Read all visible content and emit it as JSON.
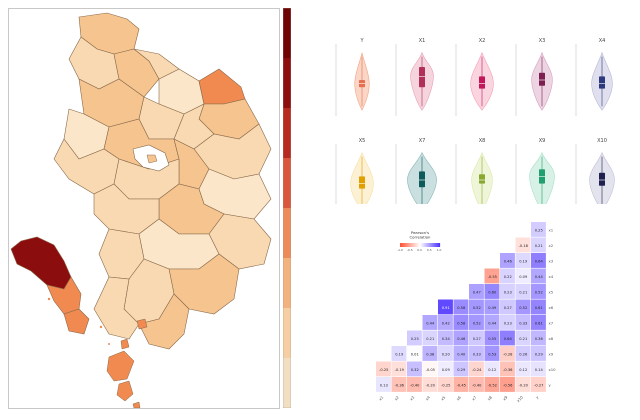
{
  "chart_data": [
    {
      "type": "choropleth",
      "colorbar": {
        "colors": [
          "#f2dfc1",
          "#f6cea3",
          "#f3b17e",
          "#ec8a5a",
          "#d9573a",
          "#b72a20",
          "#8c0d0d",
          "#6e0404"
        ]
      },
      "region_colors": {
        "dark": "#8c0d0d",
        "orange": "#f08a50",
        "light": "#f8d9b2",
        "pale": "#fbe6c9",
        "mid": "#f5c48f",
        "lake": "#ffffff",
        "border": "#8a6a4a"
      }
    },
    {
      "type": "violin",
      "panels": [
        {
          "title": "Y",
          "color": "#f4a582",
          "dark": "#e76f51",
          "center": 0.45,
          "spread": 0.14,
          "q1": 0.4,
          "q3": 0.5
        },
        {
          "title": "X1",
          "color": "#e8a0b4",
          "dark": "#b0305a",
          "center": 0.55,
          "spread": 0.22,
          "q1": 0.4,
          "q3": 0.68
        },
        {
          "title": "X2",
          "color": "#f4a0b8",
          "dark": "#c2185b",
          "center": 0.45,
          "spread": 0.22,
          "q1": 0.38,
          "q3": 0.55
        },
        {
          "title": "X3",
          "color": "#d8a0c0",
          "dark": "#7b2050",
          "center": 0.5,
          "spread": 0.2,
          "q1": 0.42,
          "q3": 0.6
        },
        {
          "title": "X4",
          "color": "#b8b8d8",
          "dark": "#2e3a80",
          "center": 0.45,
          "spread": 0.2,
          "q1": 0.38,
          "q3": 0.55
        },
        {
          "title": "X5",
          "color": "#f8e0a0",
          "dark": "#e0a000",
          "center": 0.45,
          "spread": 0.22,
          "q1": 0.38,
          "q3": 0.55
        },
        {
          "title": "X7",
          "color": "#8ab8b8",
          "dark": "#0f5a5a",
          "center": 0.5,
          "spread": 0.28,
          "q1": 0.4,
          "q3": 0.62
        },
        {
          "title": "X8",
          "color": "#dce8a8",
          "dark": "#8aa830",
          "center": 0.5,
          "spread": 0.2,
          "q1": 0.45,
          "q3": 0.58
        },
        {
          "title": "X9",
          "color": "#a8e0c8",
          "dark": "#20a070",
          "center": 0.55,
          "spread": 0.24,
          "q1": 0.45,
          "q3": 0.65
        },
        {
          "title": "X10",
          "color": "#c0c0d8",
          "dark": "#202050",
          "center": 0.5,
          "spread": 0.24,
          "q1": 0.42,
          "q3": 0.6
        }
      ]
    },
    {
      "type": "heatmap",
      "legend": {
        "title": "Pearson's Correlation",
        "ticks": [
          "-1.0",
          "-0.5",
          "0.0",
          "0.5",
          "1.0"
        ]
      },
      "row_labels": [
        "x1",
        "x2",
        "x3",
        "x4",
        "x5",
        "x6",
        "x7",
        "x8",
        "x9",
        "x10",
        "y"
      ],
      "col_labels": [
        "x1",
        "x2",
        "x3",
        "x4",
        "x5",
        "x6",
        "x7",
        "x8",
        "x9",
        "x10",
        "y"
      ],
      "values": [
        [
          null,
          null,
          null,
          null,
          null,
          null,
          null,
          null,
          null,
          null,
          0.25
        ],
        [
          null,
          null,
          null,
          null,
          null,
          null,
          null,
          null,
          null,
          -0.18,
          0.21
        ],
        [
          null,
          null,
          null,
          null,
          null,
          null,
          null,
          null,
          0.46,
          0.19,
          0.64
        ],
        [
          null,
          null,
          null,
          null,
          null,
          null,
          null,
          -0.55,
          0.22,
          0.09,
          0.44
        ],
        [
          null,
          null,
          null,
          null,
          null,
          null,
          0.47,
          0.6,
          0.23,
          0.21,
          0.52
        ],
        [
          null,
          null,
          null,
          null,
          0.91,
          0.58,
          0.52,
          0.49,
          0.27,
          0.52,
          0.61
        ],
        [
          null,
          null,
          null,
          0.44,
          0.42,
          0.58,
          0.52,
          0.44,
          0.23,
          0.33,
          0.61
        ],
        [
          null,
          null,
          0.25,
          0.21,
          0.34,
          0.46,
          0.27,
          0.55,
          0.64,
          0.21,
          0.36
        ],
        [
          null,
          0.19,
          0.01,
          0.38,
          0.2,
          0.4,
          0.33,
          0.53,
          -0.28,
          0.26,
          0.29
        ],
        [
          -0.25,
          -0.19,
          0.32,
          -0.05,
          0.09,
          0.29,
          -0.24,
          0.12,
          -0.36,
          0.12,
          0.14
        ],
        [
          0.13,
          -0.36,
          -0.4,
          -0.2,
          -0.25,
          -0.45,
          -0.4,
          -0.52,
          -0.56,
          -0.2,
          -0.27
        ]
      ]
    }
  ]
}
